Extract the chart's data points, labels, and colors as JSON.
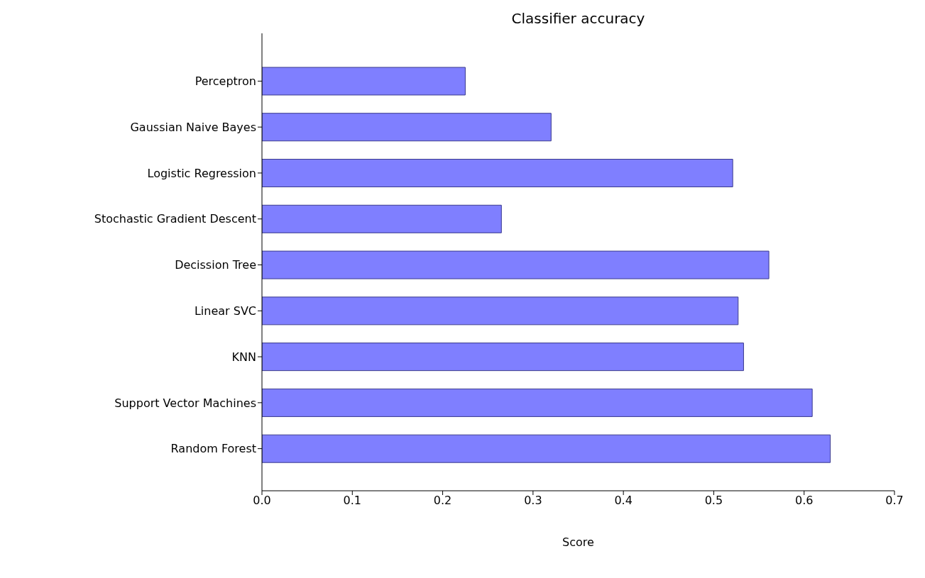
{
  "chart_data": {
    "type": "bar",
    "orientation": "horizontal",
    "title": "Classifier accuracy",
    "xlabel": "Score",
    "categories": [
      "Perceptron",
      "Gaussian Naive Bayes",
      "Logistic Regression",
      "Stochastic Gradient Descent",
      "Decission Tree",
      "Linear SVC",
      "KNN",
      "Support Vector Machines",
      "Random Forest"
    ],
    "values": [
      0.225,
      0.32,
      0.521,
      0.265,
      0.561,
      0.527,
      0.533,
      0.609,
      0.629
    ],
    "color": "#7f7fff",
    "xlim": [
      0,
      0.7
    ],
    "xticks": [
      {
        "value": 0,
        "label": "0.0"
      },
      0.1,
      0.2,
      0.3,
      0.4,
      0.5,
      0.6,
      0.7
    ],
    "grid": false
  }
}
